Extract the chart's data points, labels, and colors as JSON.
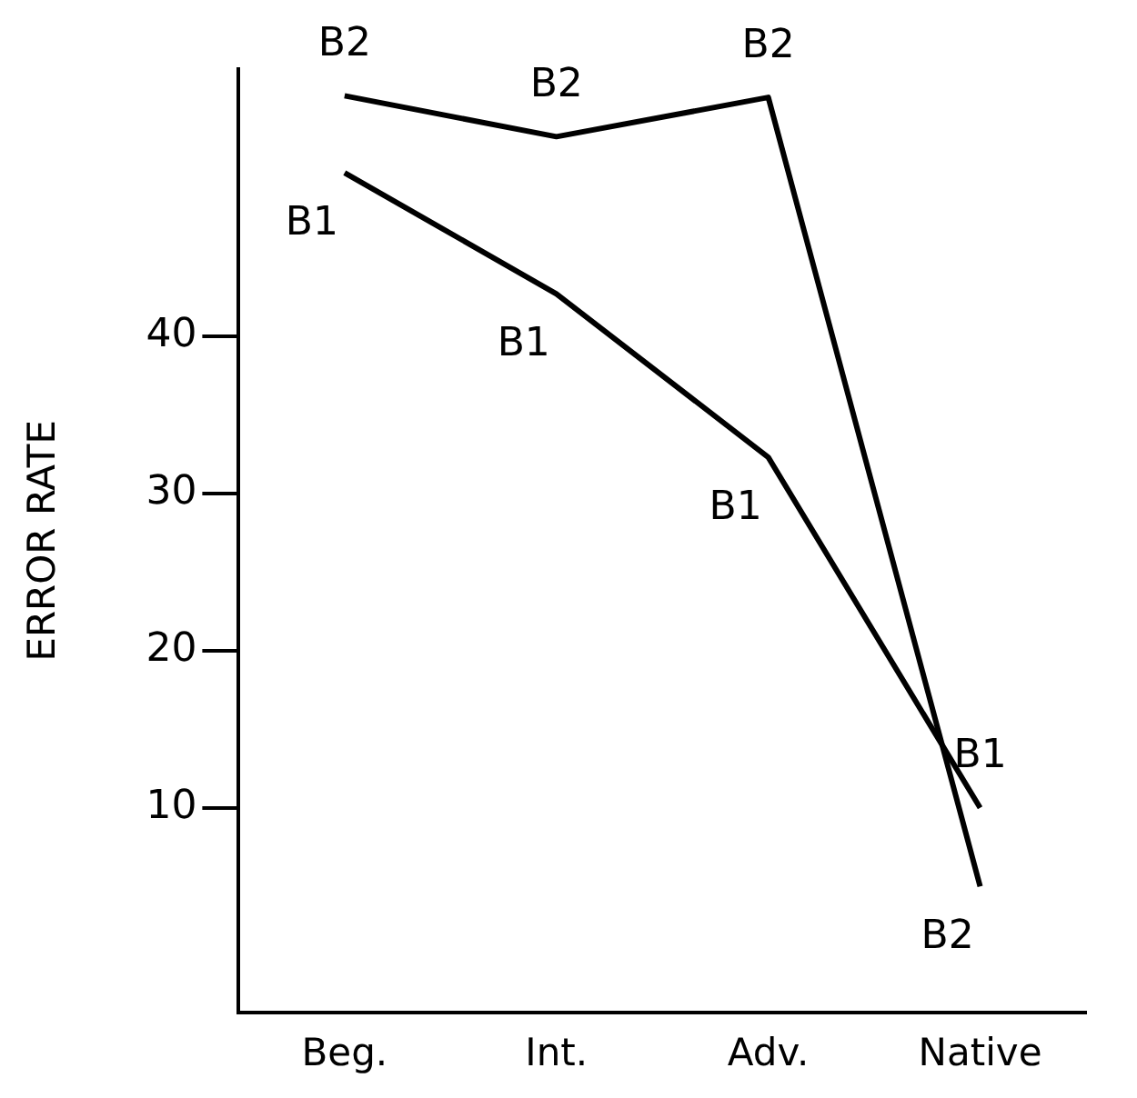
{
  "chart_data": {
    "type": "line",
    "ylabel": "ERROR RATE",
    "categories": [
      "Beg.",
      "Int.",
      "Adv.",
      "Native"
    ],
    "series": [
      {
        "name": "B2",
        "color": "#000000",
        "values": [
          55.3,
          52.7,
          55.2,
          5
        ]
      },
      {
        "name": "B1",
        "color": "#000000",
        "values": [
          50.4,
          42.7,
          32.3,
          10
        ]
      }
    ],
    "ylim": [
      -3,
      57
    ],
    "yticks": [
      10,
      20,
      30,
      40
    ],
    "grid": false,
    "legend": false,
    "marker": "none",
    "line_style": "solid"
  }
}
